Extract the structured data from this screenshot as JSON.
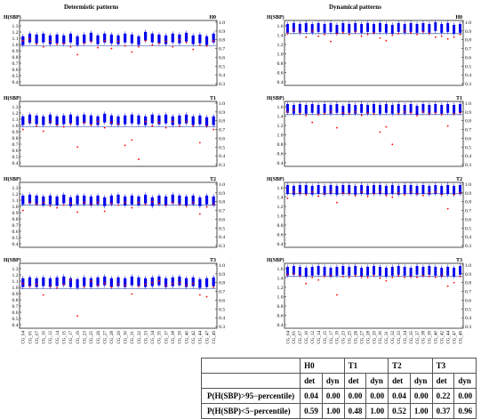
{
  "column_titles": {
    "left": "Determistic patterns",
    "right": "Dynamical patterns"
  },
  "x_categories": [
    "CG_04",
    "CG_05",
    "CG_07",
    "CG_10",
    "CG_12",
    "CG_14",
    "CG_15",
    "CG_17",
    "CG_19",
    "CG_23",
    "CG_25",
    "CG_26",
    "CG_27",
    "CG_28",
    "CG_29",
    "CG_30",
    "CG_31",
    "CG_32",
    "CG_33",
    "CG_34",
    "CG_35",
    "CG_37",
    "CG_38",
    "CG_39",
    "CG_40",
    "CG_42",
    "CG_44",
    "CG_47",
    "CG_49"
  ],
  "colors": {
    "box": "#0000ee",
    "threshold": "#1a3aa0",
    "point": "#ff0000",
    "frame": "#000000"
  },
  "chart_data": [
    {
      "id": "det-H0",
      "type": "box",
      "column": "Determistic patterns",
      "panel_label": "H0",
      "ylabel": "H(SBP)",
      "yleft_ticks": [
        "1.3",
        "1.2",
        "1.1",
        "1.0",
        "0.9",
        "0.8",
        "0.7",
        "0.6",
        "0.5",
        "0.4"
      ],
      "yright_ticks": [
        "1.0",
        "0.9",
        "0.8",
        "0.7",
        "0.6",
        "0.5",
        "0.4",
        "0.3"
      ],
      "threshold": 0.73,
      "box_mid": [
        0.79,
        0.82,
        0.81,
        0.82,
        0.8,
        0.81,
        0.8,
        0.82,
        0.79,
        0.81,
        0.83,
        0.8,
        0.82,
        0.81,
        0.8,
        0.82,
        0.81,
        0.79,
        0.84,
        0.82,
        0.81,
        0.8,
        0.82,
        0.81,
        0.83,
        0.8,
        0.81,
        0.79,
        0.82
      ],
      "points": [
        0.79,
        0.81,
        0.75,
        0.72,
        0.78,
        0.75,
        0.76,
        0.72,
        0.63,
        0.76,
        0.78,
        0.71,
        0.79,
        0.7,
        0.78,
        0.73,
        0.66,
        0.72,
        0.79,
        0.74,
        0.76,
        0.78,
        0.72,
        0.8,
        0.77,
        0.69,
        0.74,
        0.73,
        0.79
      ]
    },
    {
      "id": "det-T1",
      "type": "box",
      "column": "Determistic patterns",
      "panel_label": "T1",
      "ylabel": "H(SBP)",
      "yleft_ticks": [
        "1.3",
        "1.2",
        "1.1",
        "1.0",
        "0.9",
        "0.8",
        "0.7",
        "0.6",
        "0.5",
        "0.4"
      ],
      "yright_ticks": [
        "1.0",
        "0.9",
        "0.8",
        "0.7",
        "0.6",
        "0.5",
        "0.4",
        "0.3"
      ],
      "threshold": 0.73,
      "box_mid": [
        0.8,
        0.82,
        0.81,
        0.8,
        0.82,
        0.8,
        0.81,
        0.82,
        0.8,
        0.82,
        0.81,
        0.8,
        0.83,
        0.81,
        0.8,
        0.81,
        0.82,
        0.81,
        0.8,
        0.82,
        0.81,
        0.82,
        0.8,
        0.81,
        0.82,
        0.8,
        0.81,
        0.79,
        0.8
      ],
      "points": [
        0.7,
        0.79,
        0.74,
        0.68,
        0.79,
        0.75,
        0.73,
        0.76,
        0.5,
        0.78,
        0.75,
        0.79,
        0.72,
        0.78,
        0.76,
        0.52,
        0.58,
        0.36,
        0.79,
        0.74,
        0.78,
        0.72,
        0.79,
        0.74,
        0.79,
        0.74,
        0.55,
        0.74,
        0.7
      ]
    },
    {
      "id": "det-T2",
      "type": "box",
      "column": "Determistic patterns",
      "panel_label": "T2",
      "ylabel": "H(SBP)",
      "yleft_ticks": [
        "1.3",
        "1.2",
        "1.1",
        "1.0",
        "0.9",
        "0.8",
        "0.7",
        "0.6",
        "0.5",
        "0.4"
      ],
      "yright_ticks": [
        "1.0",
        "0.9",
        "0.8",
        "0.7",
        "0.6",
        "0.5",
        "0.4",
        "0.3"
      ],
      "threshold": 0.76,
      "box_mid": [
        0.82,
        0.83,
        0.82,
        0.81,
        0.82,
        0.81,
        0.83,
        0.8,
        0.82,
        0.82,
        0.81,
        0.82,
        0.8,
        0.82,
        0.83,
        0.81,
        0.82,
        0.81,
        0.83,
        0.8,
        0.82,
        0.81,
        0.83,
        0.82,
        0.81,
        0.82,
        0.8,
        0.82,
        0.81
      ],
      "points": [
        0.7,
        0.79,
        0.77,
        0.79,
        0.75,
        0.73,
        0.76,
        0.78,
        0.68,
        0.79,
        0.77,
        0.79,
        0.69,
        0.78,
        0.76,
        0.79,
        0.73,
        0.79,
        0.77,
        0.8,
        0.78,
        0.76,
        0.79,
        0.77,
        0.75,
        0.79,
        0.66,
        0.74,
        0.77
      ]
    },
    {
      "id": "det-T3",
      "type": "box",
      "column": "Determistic patterns",
      "panel_label": "T3",
      "ylabel": "H(SBP)",
      "yleft_ticks": [
        "1.3",
        "1.2",
        "1.1",
        "1.0",
        "0.9",
        "0.8",
        "0.7",
        "0.6",
        "0.5",
        "0.4"
      ],
      "yright_ticks": [
        "1.0",
        "0.9",
        "0.8",
        "0.7",
        "0.6",
        "0.5",
        "0.4",
        "0.3"
      ],
      "threshold": 0.73,
      "box_mid": [
        0.8,
        0.81,
        0.8,
        0.81,
        0.8,
        0.81,
        0.82,
        0.8,
        0.79,
        0.81,
        0.8,
        0.81,
        0.82,
        0.8,
        0.81,
        0.8,
        0.82,
        0.81,
        0.8,
        0.81,
        0.82,
        0.8,
        0.81,
        0.82,
        0.8,
        0.81,
        0.79,
        0.8,
        0.81
      ],
      "points": [
        0.79,
        0.76,
        0.78,
        0.66,
        0.76,
        0.74,
        0.78,
        0.83,
        0.42,
        0.75,
        0.82,
        0.77,
        0.79,
        0.75,
        0.78,
        0.77,
        0.67,
        0.76,
        0.78,
        0.8,
        0.82,
        0.77,
        0.79,
        0.8,
        0.77,
        0.79,
        0.66,
        0.64,
        0.75
      ]
    },
    {
      "id": "dyn-H0",
      "type": "box",
      "column": "Dynamical patterns",
      "panel_label": "H0",
      "ylabel": "H(SBP)",
      "yleft_ticks": [
        "1.6",
        "1.4",
        "1.2",
        "1.0",
        "0.8",
        "0.6",
        "0.4"
      ],
      "yright_ticks": [
        "1.0",
        "0.9",
        "0.8",
        "0.7",
        "0.6",
        "0.5",
        "0.4",
        "0.3"
      ],
      "threshold": 0.87,
      "box_mid": [
        0.93,
        0.94,
        0.93,
        0.94,
        0.93,
        0.94,
        0.93,
        0.94,
        0.92,
        0.94,
        0.93,
        0.94,
        0.93,
        0.94,
        0.93,
        0.94,
        0.93,
        0.92,
        0.94,
        0.93,
        0.94,
        0.93,
        0.94,
        0.93,
        0.95,
        0.93,
        0.94,
        0.92,
        0.93
      ],
      "points": [
        0.87,
        0.91,
        0.89,
        0.83,
        0.9,
        0.84,
        0.86,
        0.78,
        0.87,
        0.88,
        0.86,
        0.89,
        0.84,
        0.86,
        0.88,
        0.82,
        0.79,
        0.85,
        0.87,
        0.9,
        0.88,
        0.86,
        0.89,
        0.87,
        0.83,
        0.84,
        0.81,
        0.83,
        0.86
      ]
    },
    {
      "id": "dyn-T1",
      "type": "box",
      "column": "Dynamical patterns",
      "panel_label": "T1",
      "ylabel": "H(SBP)",
      "yleft_ticks": [
        "1.6",
        "1.4",
        "1.2",
        "1.0",
        "0.8",
        "0.6",
        "0.4"
      ],
      "yright_ticks": [
        "1.0",
        "0.9",
        "0.8",
        "0.7",
        "0.6",
        "0.5",
        "0.4",
        "0.3"
      ],
      "threshold": 0.87,
      "box_mid": [
        0.94,
        0.93,
        0.94,
        0.93,
        0.94,
        0.93,
        0.94,
        0.93,
        0.94,
        0.92,
        0.94,
        0.93,
        0.94,
        0.93,
        0.94,
        0.93,
        0.94,
        0.93,
        0.94,
        0.93,
        0.94,
        0.92,
        0.94,
        0.93,
        0.94,
        0.93,
        0.94,
        0.93,
        0.94
      ],
      "points": [
        0.9,
        0.92,
        0.88,
        0.86,
        0.78,
        0.87,
        0.88,
        0.9,
        0.72,
        0.89,
        0.88,
        0.9,
        0.86,
        0.89,
        0.88,
        0.67,
        0.73,
        0.53,
        0.88,
        0.9,
        0.89,
        0.86,
        0.9,
        0.88,
        0.89,
        0.87,
        0.74,
        0.88,
        0.89
      ]
    },
    {
      "id": "dyn-T2",
      "type": "box",
      "column": "Dynamical patterns",
      "panel_label": "T2",
      "ylabel": "H(SBP)",
      "yleft_ticks": [
        "1.6",
        "1.4",
        "1.2",
        "1.0",
        "0.8",
        "0.6",
        "0.4"
      ],
      "yright_ticks": [
        "1.0",
        "0.9",
        "0.8",
        "0.7",
        "0.6",
        "0.5",
        "0.4",
        "0.3"
      ],
      "threshold": 0.89,
      "box_mid": [
        0.94,
        0.93,
        0.94,
        0.94,
        0.93,
        0.94,
        0.93,
        0.94,
        0.93,
        0.94,
        0.94,
        0.93,
        0.94,
        0.93,
        0.94,
        0.94,
        0.93,
        0.94,
        0.93,
        0.94,
        0.94,
        0.93,
        0.94,
        0.93,
        0.94,
        0.93,
        0.94,
        0.93,
        0.94
      ],
      "points": [
        0.84,
        0.91,
        0.9,
        0.88,
        0.91,
        0.86,
        0.89,
        0.91,
        0.79,
        0.9,
        0.89,
        0.87,
        0.91,
        0.86,
        0.89,
        0.91,
        0.87,
        0.85,
        0.9,
        0.88,
        0.91,
        0.89,
        0.87,
        0.9,
        0.91,
        0.88,
        0.72,
        0.88,
        0.9
      ]
    },
    {
      "id": "dyn-T3",
      "type": "box",
      "column": "Dynamical patterns",
      "panel_label": "T3",
      "ylabel": "H(SBP)",
      "yleft_ticks": [
        "1.6",
        "1.4",
        "1.2",
        "1.0",
        "0.8",
        "0.6",
        "0.4"
      ],
      "yright_ticks": [
        "1.0",
        "0.9",
        "0.8",
        "0.7",
        "0.6",
        "0.5",
        "0.4",
        "0.3"
      ],
      "threshold": 0.87,
      "box_mid": [
        0.93,
        0.94,
        0.93,
        0.92,
        0.93,
        0.94,
        0.93,
        0.92,
        0.93,
        0.94,
        0.93,
        0.94,
        0.92,
        0.93,
        0.94,
        0.93,
        0.92,
        0.93,
        0.94,
        0.93,
        0.92,
        0.94,
        0.93,
        0.94,
        0.93,
        0.92,
        0.93,
        0.92,
        0.94
      ],
      "points": [
        0.89,
        0.9,
        0.88,
        0.79,
        0.86,
        0.83,
        0.87,
        0.88,
        0.66,
        0.87,
        0.86,
        0.88,
        0.87,
        0.86,
        0.88,
        0.85,
        0.82,
        0.86,
        0.88,
        0.86,
        0.87,
        0.86,
        0.88,
        0.87,
        0.86,
        0.88,
        0.76,
        0.8,
        0.87
      ]
    }
  ],
  "table": {
    "conditions": [
      "H0",
      "T1",
      "T2",
      "T3"
    ],
    "sub_headers": [
      "det",
      "dyn",
      "det",
      "dyn",
      "det",
      "dyn",
      "det",
      "dyn"
    ],
    "rows": [
      {
        "label": "P(H(SBP)>95−percentile)",
        "values": [
          "0.04",
          "0.00",
          "0.00",
          "0.00",
          "0.04",
          "0.00",
          "0.22",
          "0.00"
        ]
      },
      {
        "label": "P(H(SBP)<5−percentile)",
        "values": [
          "0.59",
          "1.00",
          "0.48",
          "1.00",
          "0.52",
          "1.00",
          "0.37",
          "0.96"
        ]
      }
    ]
  }
}
